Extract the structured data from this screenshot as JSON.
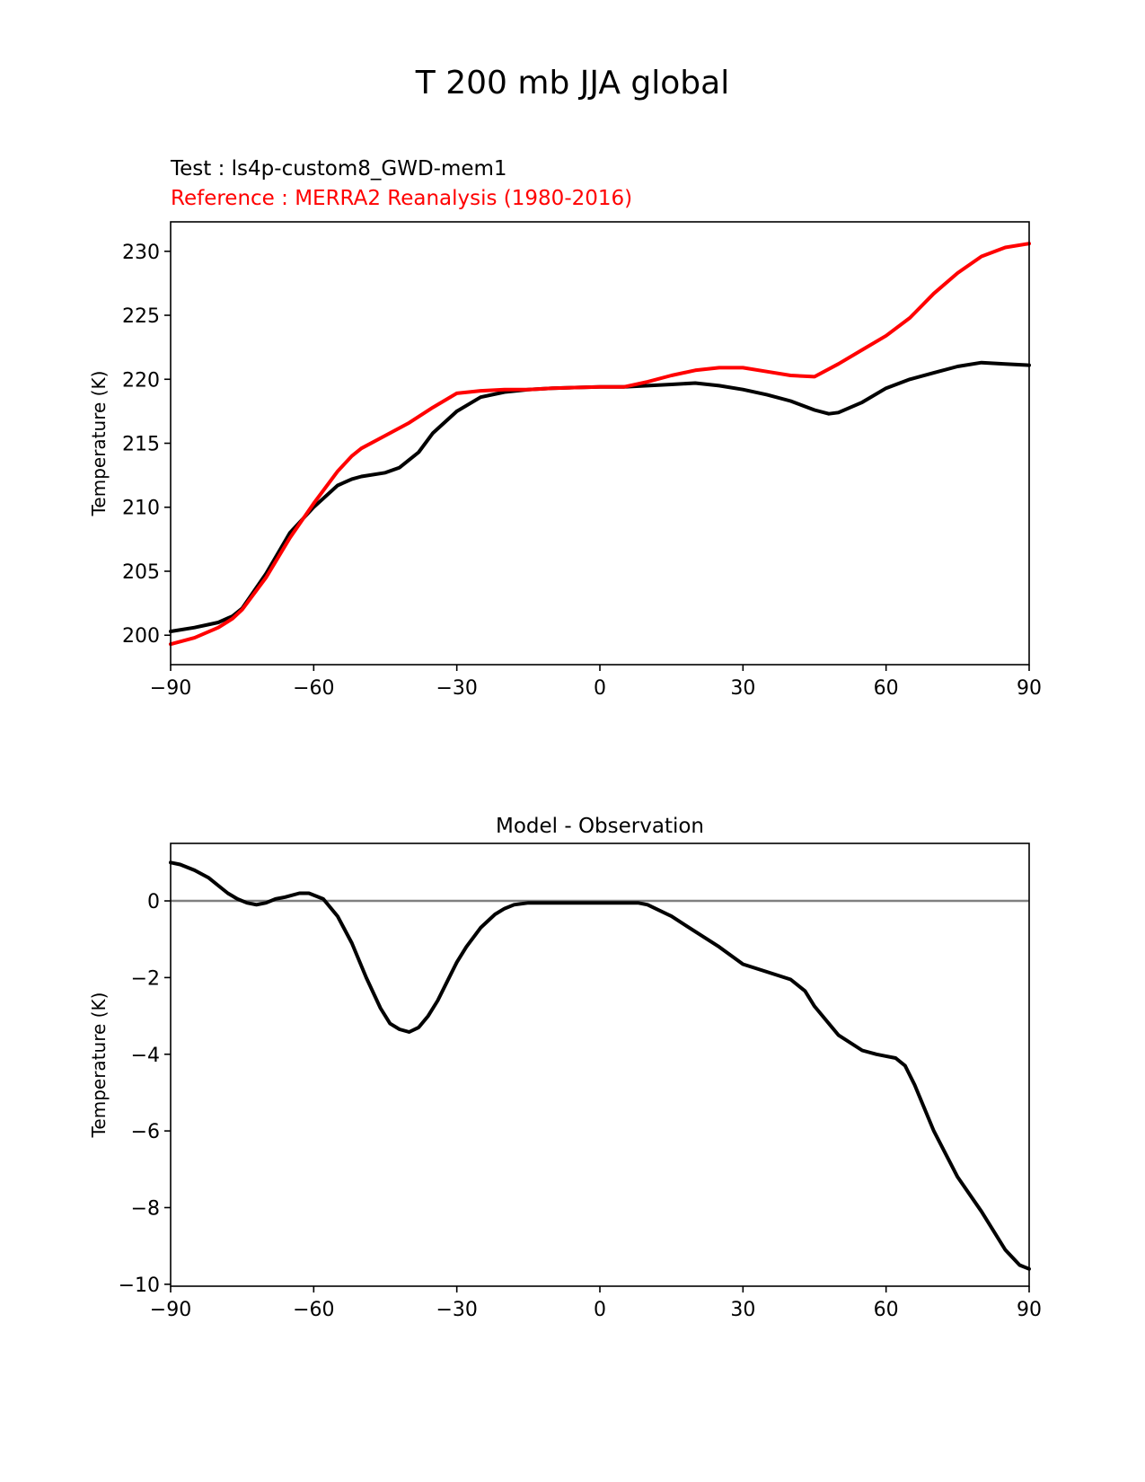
{
  "title": "T 200 mb JJA global",
  "test_label": "Test : ls4p-custom8_GWD-mem1",
  "reference_label": "Reference : MERRA2 Reanalysis (1980-2016)",
  "colors": {
    "test": "#000000",
    "reference": "#ff0000",
    "zero_line": "#808080"
  },
  "chart_data": [
    {
      "type": "line",
      "title": "",
      "xlabel": "",
      "ylabel": "Temperature (K)",
      "xlim": [
        -90,
        90
      ],
      "ylim": [
        197.7,
        232.3
      ],
      "xticks": [
        -90,
        -60,
        -30,
        0,
        30,
        60,
        90
      ],
      "xtick_labels": [
        "−90",
        "−60",
        "−30",
        "0",
        "30",
        "60",
        "90"
      ],
      "yticks": [
        200,
        205,
        210,
        215,
        220,
        225,
        230
      ],
      "ytick_labels": [
        "200",
        "205",
        "210",
        "215",
        "220",
        "225",
        "230"
      ],
      "series": [
        {
          "name": "Test : ls4p-custom8_GWD-mem1",
          "color": "#000000",
          "x": [
            -90,
            -85,
            -80,
            -77,
            -75,
            -70,
            -65,
            -60,
            -55,
            -52,
            -50,
            -45,
            -42,
            -38,
            -35,
            -30,
            -25,
            -20,
            -15,
            -10,
            0,
            5,
            10,
            15,
            20,
            25,
            30,
            35,
            40,
            45,
            48,
            50,
            55,
            60,
            65,
            70,
            75,
            80,
            85,
            90
          ],
          "values": [
            200.3,
            200.6,
            201.0,
            201.5,
            202.1,
            204.8,
            208.0,
            210.0,
            211.7,
            212.2,
            212.4,
            212.7,
            213.1,
            214.3,
            215.8,
            217.5,
            218.6,
            219.0,
            219.2,
            219.3,
            219.4,
            219.4,
            219.5,
            219.6,
            219.7,
            219.5,
            219.2,
            218.8,
            218.3,
            217.6,
            217.3,
            217.4,
            218.2,
            219.3,
            220.0,
            220.5,
            221.0,
            221.3,
            221.2,
            221.1
          ]
        },
        {
          "name": "Reference : MERRA2 Reanalysis (1980-2016)",
          "color": "#ff0000",
          "x": [
            -90,
            -85,
            -80,
            -77,
            -75,
            -70,
            -65,
            -60,
            -55,
            -52,
            -50,
            -45,
            -40,
            -35,
            -30,
            -25,
            -20,
            -15,
            -10,
            0,
            5,
            10,
            15,
            20,
            25,
            30,
            35,
            40,
            45,
            50,
            55,
            60,
            65,
            70,
            75,
            80,
            85,
            90
          ],
          "values": [
            199.3,
            199.8,
            200.6,
            201.3,
            202.0,
            204.5,
            207.6,
            210.3,
            212.8,
            214.0,
            214.6,
            215.6,
            216.6,
            217.8,
            218.9,
            219.1,
            219.2,
            219.2,
            219.3,
            219.4,
            219.4,
            219.8,
            220.3,
            220.7,
            220.9,
            220.9,
            220.6,
            220.3,
            220.2,
            221.2,
            222.3,
            223.4,
            224.8,
            226.7,
            228.3,
            229.6,
            230.3,
            230.6
          ]
        }
      ]
    },
    {
      "type": "line",
      "title": "Model - Observation",
      "xlabel": "",
      "ylabel": "Temperature (K)",
      "xlim": [
        -90,
        90
      ],
      "ylim": [
        -10.05,
        1.5
      ],
      "xticks": [
        -90,
        -60,
        -30,
        0,
        30,
        60,
        90
      ],
      "xtick_labels": [
        "−90",
        "−60",
        "−30",
        "0",
        "30",
        "60",
        "90"
      ],
      "yticks": [
        -10,
        -8,
        -6,
        -4,
        -2,
        0
      ],
      "ytick_labels": [
        "−10",
        "−8",
        "−6",
        "−4",
        "−2",
        "0"
      ],
      "hline": 0,
      "series": [
        {
          "name": "Model - Observation",
          "color": "#000000",
          "x": [
            -90,
            -88,
            -85,
            -82,
            -80,
            -78,
            -76,
            -74,
            -72,
            -70,
            -68,
            -66,
            -63,
            -61,
            -58,
            -55,
            -52,
            -49,
            -46,
            -44,
            -42,
            -40,
            -38,
            -36,
            -34,
            -32,
            -30,
            -28,
            -25,
            -22,
            -20,
            -18,
            -15,
            -12,
            -8,
            -5,
            0,
            5,
            8,
            10,
            15,
            20,
            25,
            30,
            35,
            40,
            43,
            45,
            50,
            55,
            58,
            60,
            62,
            64,
            66,
            70,
            75,
            80,
            85,
            88,
            90
          ],
          "values": [
            1.0,
            0.95,
            0.8,
            0.6,
            0.4,
            0.2,
            0.05,
            -0.05,
            -0.1,
            -0.05,
            0.05,
            0.1,
            0.2,
            0.2,
            0.05,
            -0.4,
            -1.1,
            -2.0,
            -2.8,
            -3.2,
            -3.35,
            -3.42,
            -3.3,
            -3.0,
            -2.6,
            -2.1,
            -1.6,
            -1.2,
            -0.7,
            -0.35,
            -0.2,
            -0.1,
            -0.05,
            -0.05,
            -0.05,
            -0.05,
            -0.05,
            -0.05,
            -0.05,
            -0.1,
            -0.4,
            -0.8,
            -1.2,
            -1.65,
            -1.85,
            -2.05,
            -2.35,
            -2.75,
            -3.5,
            -3.9,
            -4.0,
            -4.05,
            -4.1,
            -4.3,
            -4.8,
            -6.0,
            -7.2,
            -8.1,
            -9.1,
            -9.5,
            -9.6
          ]
        }
      ]
    }
  ]
}
